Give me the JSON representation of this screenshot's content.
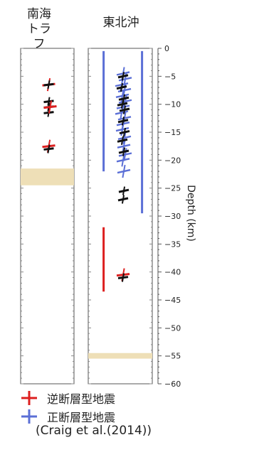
{
  "panels": [
    {
      "title_line1": "南海",
      "title_line2": "トラフ"
    },
    {
      "title_line1": "東北沖",
      "title_line2": ""
    }
  ],
  "legend": [
    {
      "label": "逆断層型地震",
      "color": "#dd1f1f"
    },
    {
      "label": "正断層型地震",
      "color": "#5b6fd6"
    }
  ],
  "citation": "(Craig et al.(2014))",
  "colors": {
    "reverse": "#dd1f1f",
    "normal": "#5b6fd6",
    "black": "#111111",
    "band": "#eedfb7",
    "frame": "#555555"
  },
  "chart_data": {
    "type": "depth-profile",
    "ylabel": "Depth (km)",
    "ylim": [
      -60,
      0
    ],
    "yticks": [
      0,
      -5,
      -10,
      -15,
      -20,
      -25,
      -30,
      -35,
      -40,
      -45,
      -50,
      -55,
      -60
    ],
    "panels": [
      {
        "name": "南海トラフ",
        "bands": [
          {
            "top": -21.5,
            "bottom": -24.5
          }
        ],
        "ranges": [],
        "events": [
          {
            "depth": -6.5,
            "type": "reverse",
            "color": "red",
            "dx": 0
          },
          {
            "depth": -6.5,
            "type": "reverse",
            "color": "black",
            "dx": 0
          },
          {
            "depth": -9.5,
            "type": "reverse",
            "color": "black",
            "dx": 0
          },
          {
            "depth": -10.5,
            "type": "reverse",
            "color": "black",
            "dx": 0
          },
          {
            "depth": -11.5,
            "type": "reverse",
            "color": "black",
            "dx": 0
          },
          {
            "depth": -10.5,
            "type": "reverse",
            "color": "red",
            "dx": 2
          },
          {
            "depth": -17.5,
            "type": "reverse",
            "color": "red",
            "dx": 0
          },
          {
            "depth": -18.0,
            "type": "reverse",
            "color": "black",
            "dx": 0
          }
        ]
      },
      {
        "name": "東北沖",
        "bands": [
          {
            "top": -54.5,
            "bottom": -55.5
          }
        ],
        "ranges": [
          {
            "type": "normal",
            "top": -0.5,
            "bottom": -22.0,
            "pos": 0.24
          },
          {
            "type": "normal",
            "top": -0.5,
            "bottom": -29.5,
            "pos": 0.84
          },
          {
            "type": "reverse",
            "top": -32.0,
            "bottom": -43.5,
            "pos": 0.24
          }
        ],
        "events": [
          {
            "depth": -4.5,
            "type": "normal",
            "color": "blue",
            "dx": 0
          },
          {
            "depth": -5.5,
            "type": "normal",
            "color": "blue",
            "dx": 3
          },
          {
            "depth": -6.5,
            "type": "normal",
            "color": "blue",
            "dx": -2
          },
          {
            "depth": -7.5,
            "type": "normal",
            "color": "blue",
            "dx": 2
          },
          {
            "depth": -8.5,
            "type": "normal",
            "color": "blue",
            "dx": -1
          },
          {
            "depth": -9.5,
            "type": "normal",
            "color": "blue",
            "dx": 3
          },
          {
            "depth": -10.5,
            "type": "normal",
            "color": "blue",
            "dx": 0
          },
          {
            "depth": -11.5,
            "type": "normal",
            "color": "blue",
            "dx": -2
          },
          {
            "depth": -12.5,
            "type": "normal",
            "color": "blue",
            "dx": 2
          },
          {
            "depth": -13.5,
            "type": "normal",
            "color": "blue",
            "dx": 0
          },
          {
            "depth": -14.5,
            "type": "normal",
            "color": "blue",
            "dx": -1
          },
          {
            "depth": -16.0,
            "type": "normal",
            "color": "blue",
            "dx": 2
          },
          {
            "depth": -17.5,
            "type": "normal",
            "color": "blue",
            "dx": 1
          },
          {
            "depth": -19.0,
            "type": "normal",
            "color": "blue",
            "dx": 3
          },
          {
            "depth": -20.0,
            "type": "normal",
            "color": "blue",
            "dx": 0
          },
          {
            "depth": -22.0,
            "type": "normal",
            "color": "blue",
            "dx": 1
          },
          {
            "depth": -5.0,
            "type": "normal",
            "color": "black",
            "dx": 0
          },
          {
            "depth": -7.0,
            "type": "normal",
            "color": "black",
            "dx": -2
          },
          {
            "depth": -9.0,
            "type": "normal",
            "color": "black",
            "dx": 1
          },
          {
            "depth": -10.0,
            "type": "normal",
            "color": "black",
            "dx": -1
          },
          {
            "depth": -11.0,
            "type": "normal",
            "color": "black",
            "dx": 2
          },
          {
            "depth": -13.0,
            "type": "normal",
            "color": "black",
            "dx": 0
          },
          {
            "depth": -15.0,
            "type": "normal",
            "color": "black",
            "dx": 2
          },
          {
            "depth": -16.5,
            "type": "normal",
            "color": "black",
            "dx": -1
          },
          {
            "depth": -18.5,
            "type": "normal",
            "color": "black",
            "dx": 1
          },
          {
            "depth": -25.5,
            "type": "normal",
            "color": "black",
            "dx": 1
          },
          {
            "depth": -27.0,
            "type": "normal",
            "color": "black",
            "dx": 0
          },
          {
            "depth": -40.5,
            "type": "reverse",
            "color": "red",
            "dx": 0
          },
          {
            "depth": -41.0,
            "type": "reverse",
            "color": "black",
            "dx": 0
          }
        ]
      }
    ]
  }
}
